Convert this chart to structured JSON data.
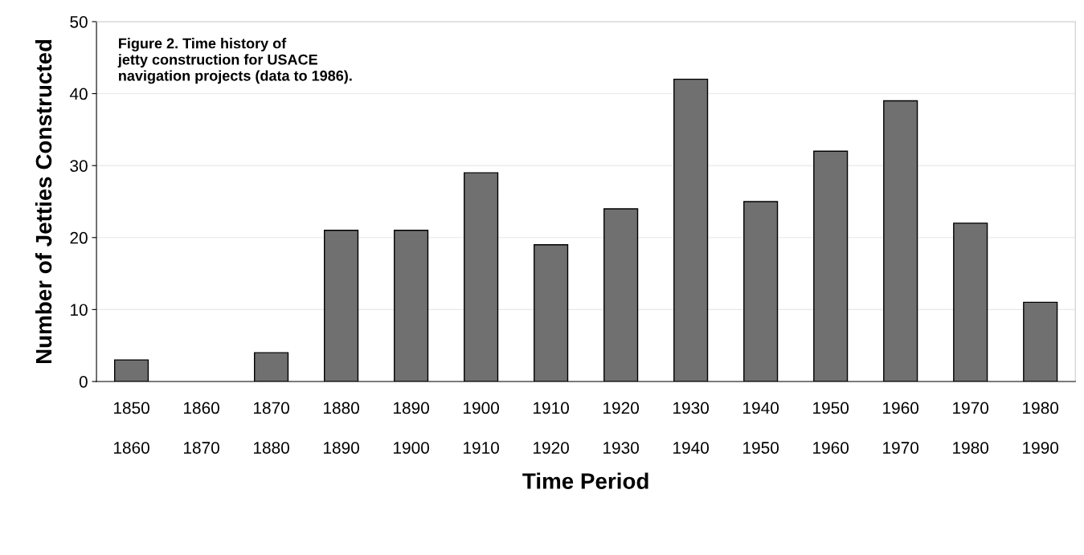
{
  "chart_data": {
    "type": "bar",
    "title": "Figure 2. Time history of\njetty construction for USACE\nnavigation projects (data to 1986).",
    "xlabel": "Time Period",
    "ylabel": "Number of Jetties Constructed",
    "categories": [
      "1850\n1860",
      "1860\n1870",
      "1870\n1880",
      "1880\n1890",
      "1890\n1900",
      "1900\n1910",
      "1910\n1920",
      "1920\n1930",
      "1930\n1940",
      "1940\n1950",
      "1950\n1960",
      "1960\n1970",
      "1970\n1980",
      "1980\n1990"
    ],
    "values": [
      3,
      0,
      4,
      21,
      21,
      29,
      19,
      24,
      42,
      25,
      32,
      39,
      22,
      11
    ],
    "color": "#707070",
    "ylim": [
      0,
      50
    ],
    "yticks": [
      0,
      10,
      20,
      30,
      40,
      50
    ],
    "grid": "y"
  }
}
